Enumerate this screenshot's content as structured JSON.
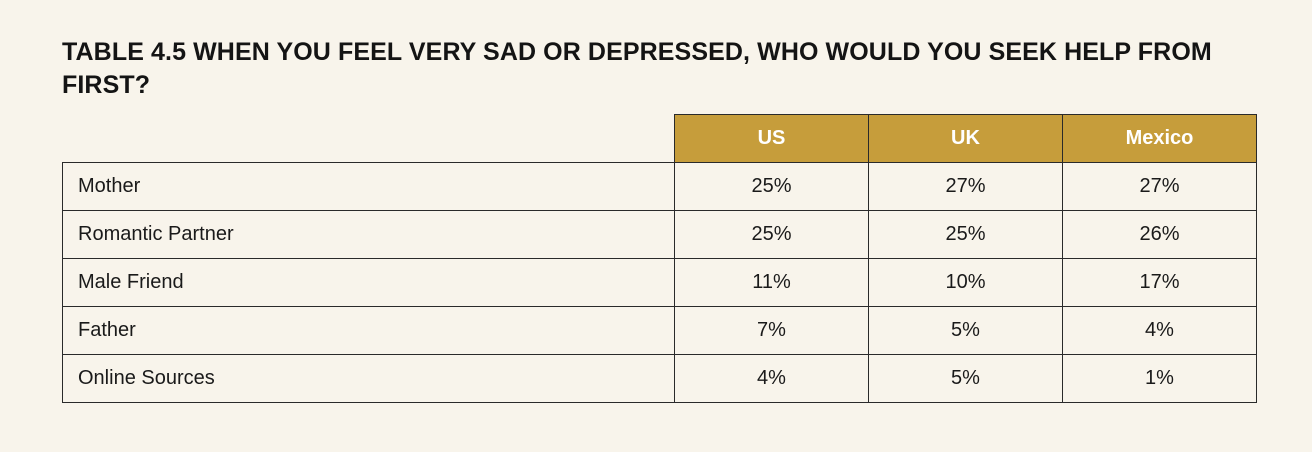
{
  "title": "TABLE 4.5 WHEN YOU FEEL VERY SAD OR DEPRESSED, WHO WOULD YOU SEEK HELP FROM FIRST?",
  "columns": [
    "US",
    "UK",
    "Mexico"
  ],
  "rows": [
    {
      "label": "Mother",
      "values": [
        "25%",
        "27%",
        "27%"
      ]
    },
    {
      "label": "Romantic Partner",
      "values": [
        "25%",
        "25%",
        "26%"
      ]
    },
    {
      "label": "Male Friend",
      "values": [
        "11%",
        "10%",
        "17%"
      ]
    },
    {
      "label": "Father",
      "values": [
        "7%",
        "5%",
        "4%"
      ]
    },
    {
      "label": "Online Sources",
      "values": [
        "4%",
        "5%",
        "1%"
      ]
    }
  ],
  "colors": {
    "background": "#f8f4eb",
    "header_fill": "#c69d3b",
    "header_text": "#ffffff",
    "border": "#2a2a2a"
  }
}
